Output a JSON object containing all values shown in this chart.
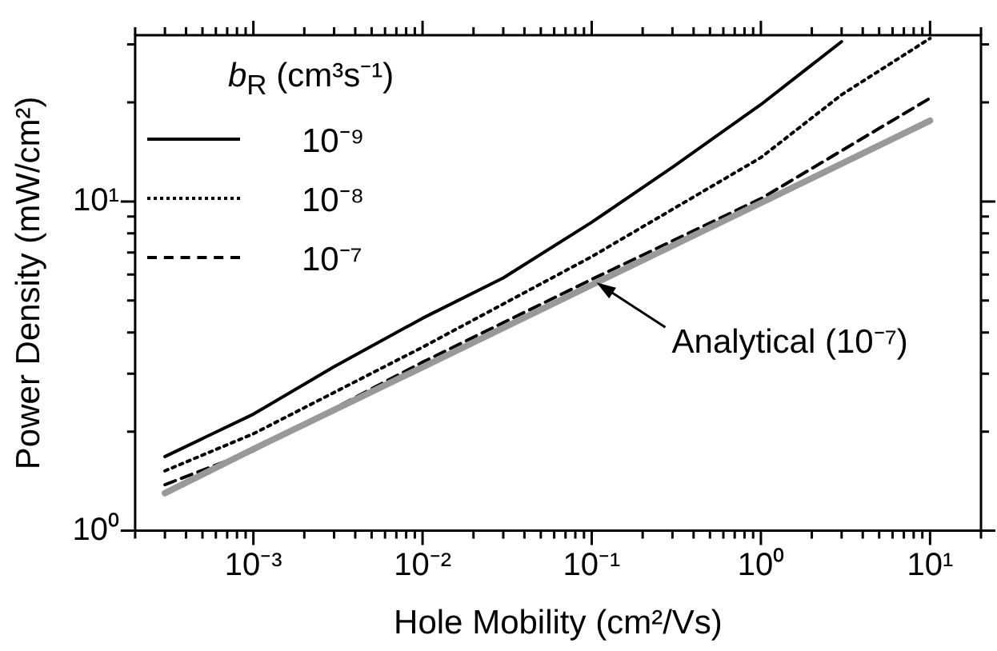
{
  "chart_data": {
    "type": "line",
    "xlabel": "Hole Mobility (cm²/Vs)",
    "ylabel": "Power Density (mW/cm²)",
    "legend_title": "b$_{R}$ (cm³s⁻¹)",
    "log": "xy",
    "grid": false,
    "legend": "top left",
    "marker": "none",
    "xlim": [
      0.0002,
      20
    ],
    "ylim": [
      1,
      32
    ],
    "xticks": [
      {
        "value": 0.0002,
        "label": null
      },
      {
        "value": 0.0003,
        "label": null
      },
      {
        "value": 0.0004,
        "label": null
      },
      {
        "value": 0.0005,
        "label": null
      },
      {
        "value": 0.0006,
        "label": null
      },
      {
        "value": 0.0007,
        "label": null
      },
      {
        "value": 0.0008,
        "label": null
      },
      {
        "value": 0.0009,
        "label": null
      },
      {
        "value": 0.001,
        "label": "10⁻³"
      },
      {
        "value": 0.002,
        "label": null
      },
      {
        "value": 0.003,
        "label": null
      },
      {
        "value": 0.004,
        "label": null
      },
      {
        "value": 0.005,
        "label": null
      },
      {
        "value": 0.006,
        "label": null
      },
      {
        "value": 0.007,
        "label": null
      },
      {
        "value": 0.008,
        "label": null
      },
      {
        "value": 0.009,
        "label": null
      },
      {
        "value": 0.01,
        "label": "10⁻²"
      },
      {
        "value": 0.02,
        "label": null
      },
      {
        "value": 0.03,
        "label": null
      },
      {
        "value": 0.04,
        "label": null
      },
      {
        "value": 0.05,
        "label": null
      },
      {
        "value": 0.06,
        "label": null
      },
      {
        "value": 0.07,
        "label": null
      },
      {
        "value": 0.08,
        "label": null
      },
      {
        "value": 0.09,
        "label": null
      },
      {
        "value": 0.1,
        "label": "10⁻¹"
      },
      {
        "value": 0.2,
        "label": null
      },
      {
        "value": 0.3,
        "label": null
      },
      {
        "value": 0.4,
        "label": null
      },
      {
        "value": 0.5,
        "label": null
      },
      {
        "value": 0.6,
        "label": null
      },
      {
        "value": 0.7,
        "label": null
      },
      {
        "value": 0.8,
        "label": null
      },
      {
        "value": 0.9,
        "label": null
      },
      {
        "value": 1,
        "label": "10⁰"
      },
      {
        "value": 2,
        "label": null
      },
      {
        "value": 3,
        "label": null
      },
      {
        "value": 4,
        "label": null
      },
      {
        "value": 5,
        "label": null
      },
      {
        "value": 6,
        "label": null
      },
      {
        "value": 7,
        "label": null
      },
      {
        "value": 8,
        "label": null
      },
      {
        "value": 9,
        "label": null
      },
      {
        "value": 10,
        "label": "10¹"
      },
      {
        "value": 20,
        "label": null
      }
    ],
    "yticks": [
      {
        "value": 1,
        "label": "10⁰"
      },
      {
        "value": 2,
        "label": null
      },
      {
        "value": 3,
        "label": null
      },
      {
        "value": 4,
        "label": null
      },
      {
        "value": 5,
        "label": null
      },
      {
        "value": 6,
        "label": null
      },
      {
        "value": 7,
        "label": null
      },
      {
        "value": 8,
        "label": null
      },
      {
        "value": 9,
        "label": null
      },
      {
        "value": 10,
        "label": "10¹"
      },
      {
        "value": 20,
        "label": null
      },
      {
        "value": 30,
        "label": null
      }
    ],
    "series": [
      {
        "name": "10⁻⁹",
        "color": "#000000",
        "line_style": "solid",
        "x": [
          0.0003,
          0.001,
          0.003,
          0.01,
          0.03,
          0.1,
          0.3,
          1,
          3
        ],
        "values": [
          1.68,
          2.26,
          3.15,
          4.42,
          5.86,
          8.65,
          12.7,
          19.7,
          30.6
        ]
      },
      {
        "name": "10⁻⁸",
        "color": "#000000",
        "line_style": "dotted",
        "x": [
          0.0003,
          0.001,
          0.01,
          0.1,
          1,
          3,
          10
        ],
        "values": [
          1.52,
          1.97,
          3.61,
          6.8,
          13.6,
          21.1,
          31.3
        ]
      },
      {
        "name": "10⁻⁷",
        "color": "#000000",
        "line_style": "dashed",
        "x": [
          0.0003,
          0.001,
          0.01,
          0.1,
          1,
          10
        ],
        "values": [
          1.38,
          1.75,
          3.25,
          5.8,
          10.2,
          20.6
        ]
      },
      {
        "color": "#999999",
        "line_style": "solid",
        "x": [
          0.0003,
          0.001,
          0.01,
          0.1,
          1,
          10
        ],
        "values": [
          1.3,
          1.77,
          3.14,
          5.58,
          9.9,
          17.6
        ]
      }
    ],
    "annotations": [
      {
        "text": "Analytical (10⁻⁷)",
        "x": 0.1,
        "y": 5.8
      }
    ]
  }
}
